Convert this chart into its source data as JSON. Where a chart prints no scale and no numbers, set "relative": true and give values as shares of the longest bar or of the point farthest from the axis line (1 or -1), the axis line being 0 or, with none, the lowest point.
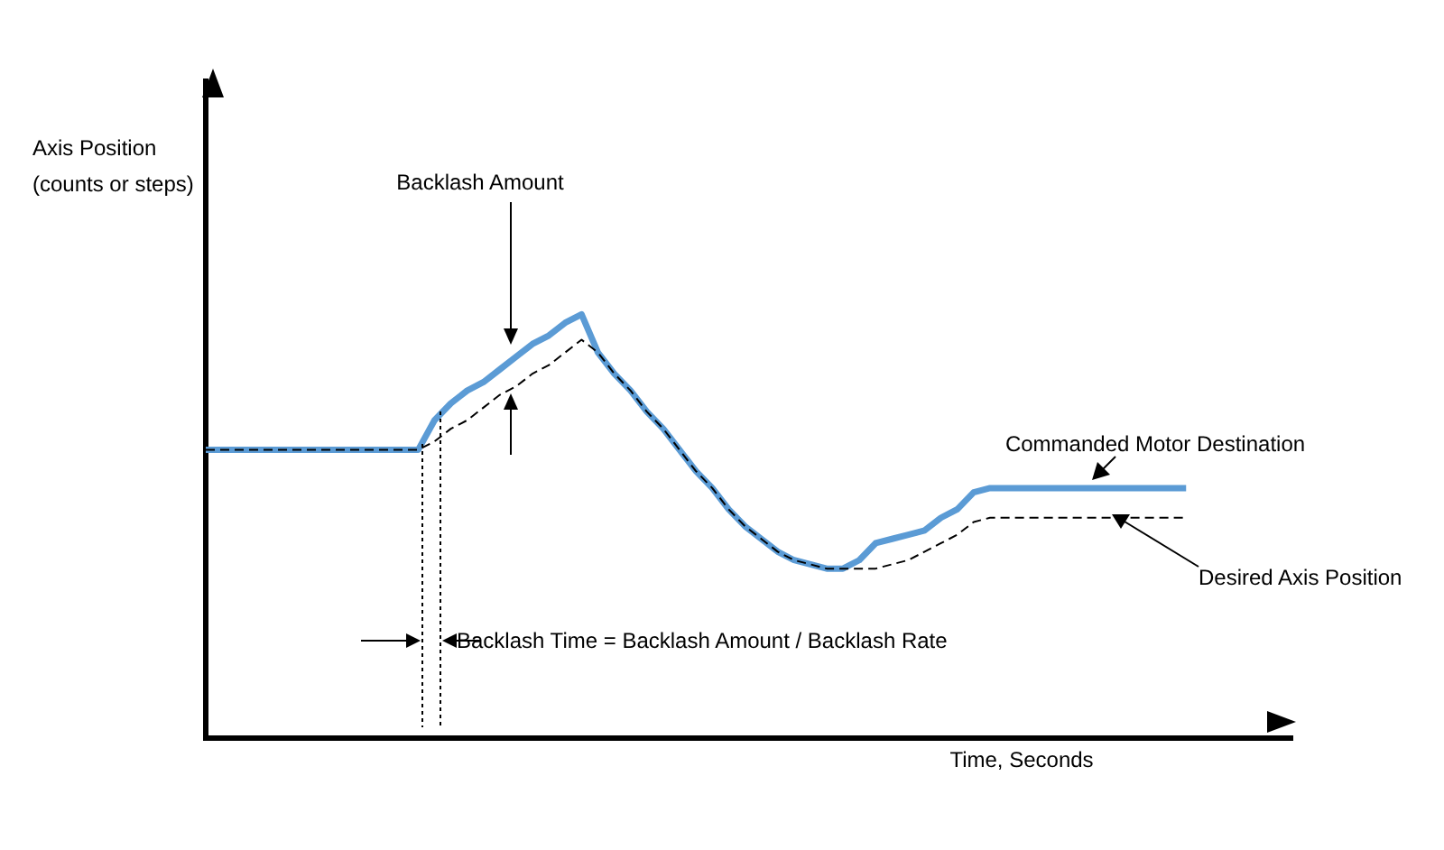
{
  "chart_data": {
    "type": "line",
    "relative": true,
    "xlabel": "Time, Seconds",
    "legend": false,
    "grid": false,
    "marker": "none",
    "categories": [
      null,
      null,
      null,
      null,
      null,
      null,
      null,
      null,
      null,
      null,
      null,
      null,
      null,
      null,
      null,
      null,
      null,
      null,
      null,
      null,
      null,
      null,
      null,
      null,
      null,
      null,
      null,
      null,
      null,
      null,
      null,
      null,
      null,
      null,
      null,
      null,
      null,
      null,
      null,
      null,
      null,
      null,
      null,
      null,
      null,
      null,
      null,
      null,
      null,
      null,
      null,
      null,
      null,
      null,
      null,
      null,
      null,
      null,
      null,
      null,
      null
    ],
    "series": [
      {
        "name": "Commanded Motor Destination",
        "color": "#5b9bd5",
        "line_style": "solid",
        "values": [
          0.68,
          0.68,
          0.68,
          0.68,
          0.68,
          0.68,
          0.68,
          0.68,
          0.68,
          0.68,
          0.68,
          0.68,
          0.68,
          0.68,
          0.75,
          0.79,
          0.82,
          0.84,
          0.87,
          0.9,
          0.93,
          0.95,
          0.98,
          1,
          0.91,
          0.86,
          0.82,
          0.77,
          0.73,
          0.68,
          0.63,
          0.59,
          0.54,
          0.5,
          0.47,
          0.44,
          0.42,
          0.41,
          0.4,
          0.4,
          0.42,
          0.46,
          0.47,
          0.48,
          0.49,
          0.52,
          0.54,
          0.58,
          0.59,
          0.59,
          0.59,
          0.59,
          0.59,
          0.59,
          0.59,
          0.59,
          0.59,
          0.59,
          0.59,
          0.59,
          0.59
        ]
      },
      {
        "name": "Desired Axis Position",
        "color": "#000000",
        "line_style": "dashed",
        "values": [
          0.68,
          0.68,
          0.68,
          0.68,
          0.68,
          0.68,
          0.68,
          0.68,
          0.68,
          0.68,
          0.68,
          0.68,
          0.68,
          0.68,
          0.7,
          0.73,
          0.75,
          0.78,
          0.81,
          0.83,
          0.86,
          0.88,
          0.91,
          0.94,
          0.91,
          0.86,
          0.82,
          0.77,
          0.73,
          0.68,
          0.63,
          0.59,
          0.54,
          0.5,
          0.47,
          0.44,
          0.42,
          0.41,
          0.4,
          0.4,
          0.4,
          0.4,
          0.41,
          0.42,
          0.44,
          0.46,
          0.48,
          0.51,
          0.52,
          0.52,
          0.52,
          0.52,
          0.52,
          0.52,
          0.52,
          0.52,
          0.52,
          0.52,
          0.52,
          0.52,
          0.52
        ]
      }
    ],
    "annotations": [
      "Backlash Amount",
      "Backlash Time = Backlash Amount / Backlash Rate",
      "Axis Position\n(counts or steps)"
    ]
  }
}
